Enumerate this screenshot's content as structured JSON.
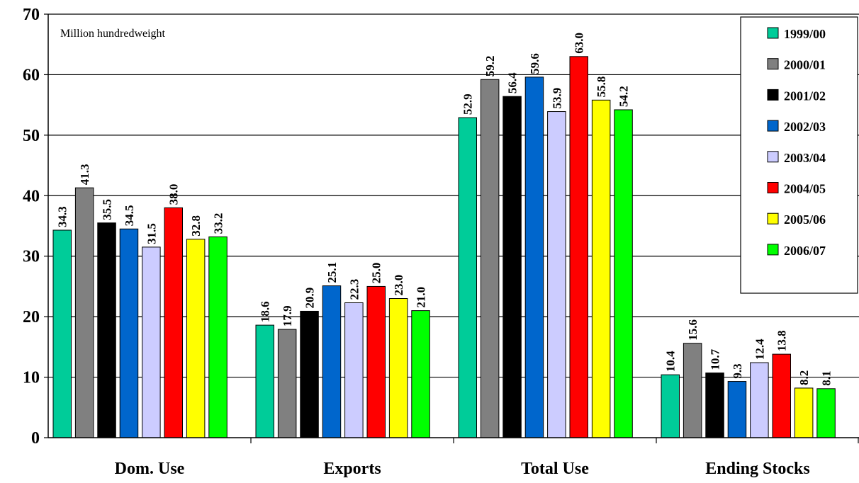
{
  "chart_data": {
    "type": "bar",
    "annotation": "Million hundredweight",
    "categories": [
      "Dom. Use",
      "Exports",
      "Total Use",
      "Ending Stocks"
    ],
    "ylim": [
      0,
      70
    ],
    "yticks": [
      0,
      10,
      20,
      30,
      40,
      50,
      60,
      70
    ],
    "grid": true,
    "legend_position": "top-right",
    "series": [
      {
        "name": "1999/00",
        "color": "#00CC99",
        "values": [
          34.3,
          18.6,
          52.9,
          10.4
        ]
      },
      {
        "name": "2000/01",
        "color": "#808080",
        "values": [
          41.3,
          17.9,
          59.2,
          15.6
        ]
      },
      {
        "name": "2001/02",
        "color": "#000000",
        "values": [
          35.5,
          20.9,
          56.4,
          10.7
        ]
      },
      {
        "name": "2002/03",
        "color": "#0066CC",
        "values": [
          34.5,
          25.1,
          59.6,
          9.3
        ]
      },
      {
        "name": "2003/04",
        "color": "#CCCCFF",
        "values": [
          31.5,
          22.3,
          53.9,
          12.4
        ]
      },
      {
        "name": "2004/05",
        "color": "#FF0000",
        "values": [
          38.0,
          25.0,
          63.0,
          13.8
        ]
      },
      {
        "name": "2005/06",
        "color": "#FFFF00",
        "values": [
          32.8,
          23.0,
          55.8,
          8.2
        ]
      },
      {
        "name": "2006/07",
        "color": "#00FF00",
        "values": [
          33.2,
          21.0,
          54.2,
          8.1
        ]
      }
    ]
  }
}
